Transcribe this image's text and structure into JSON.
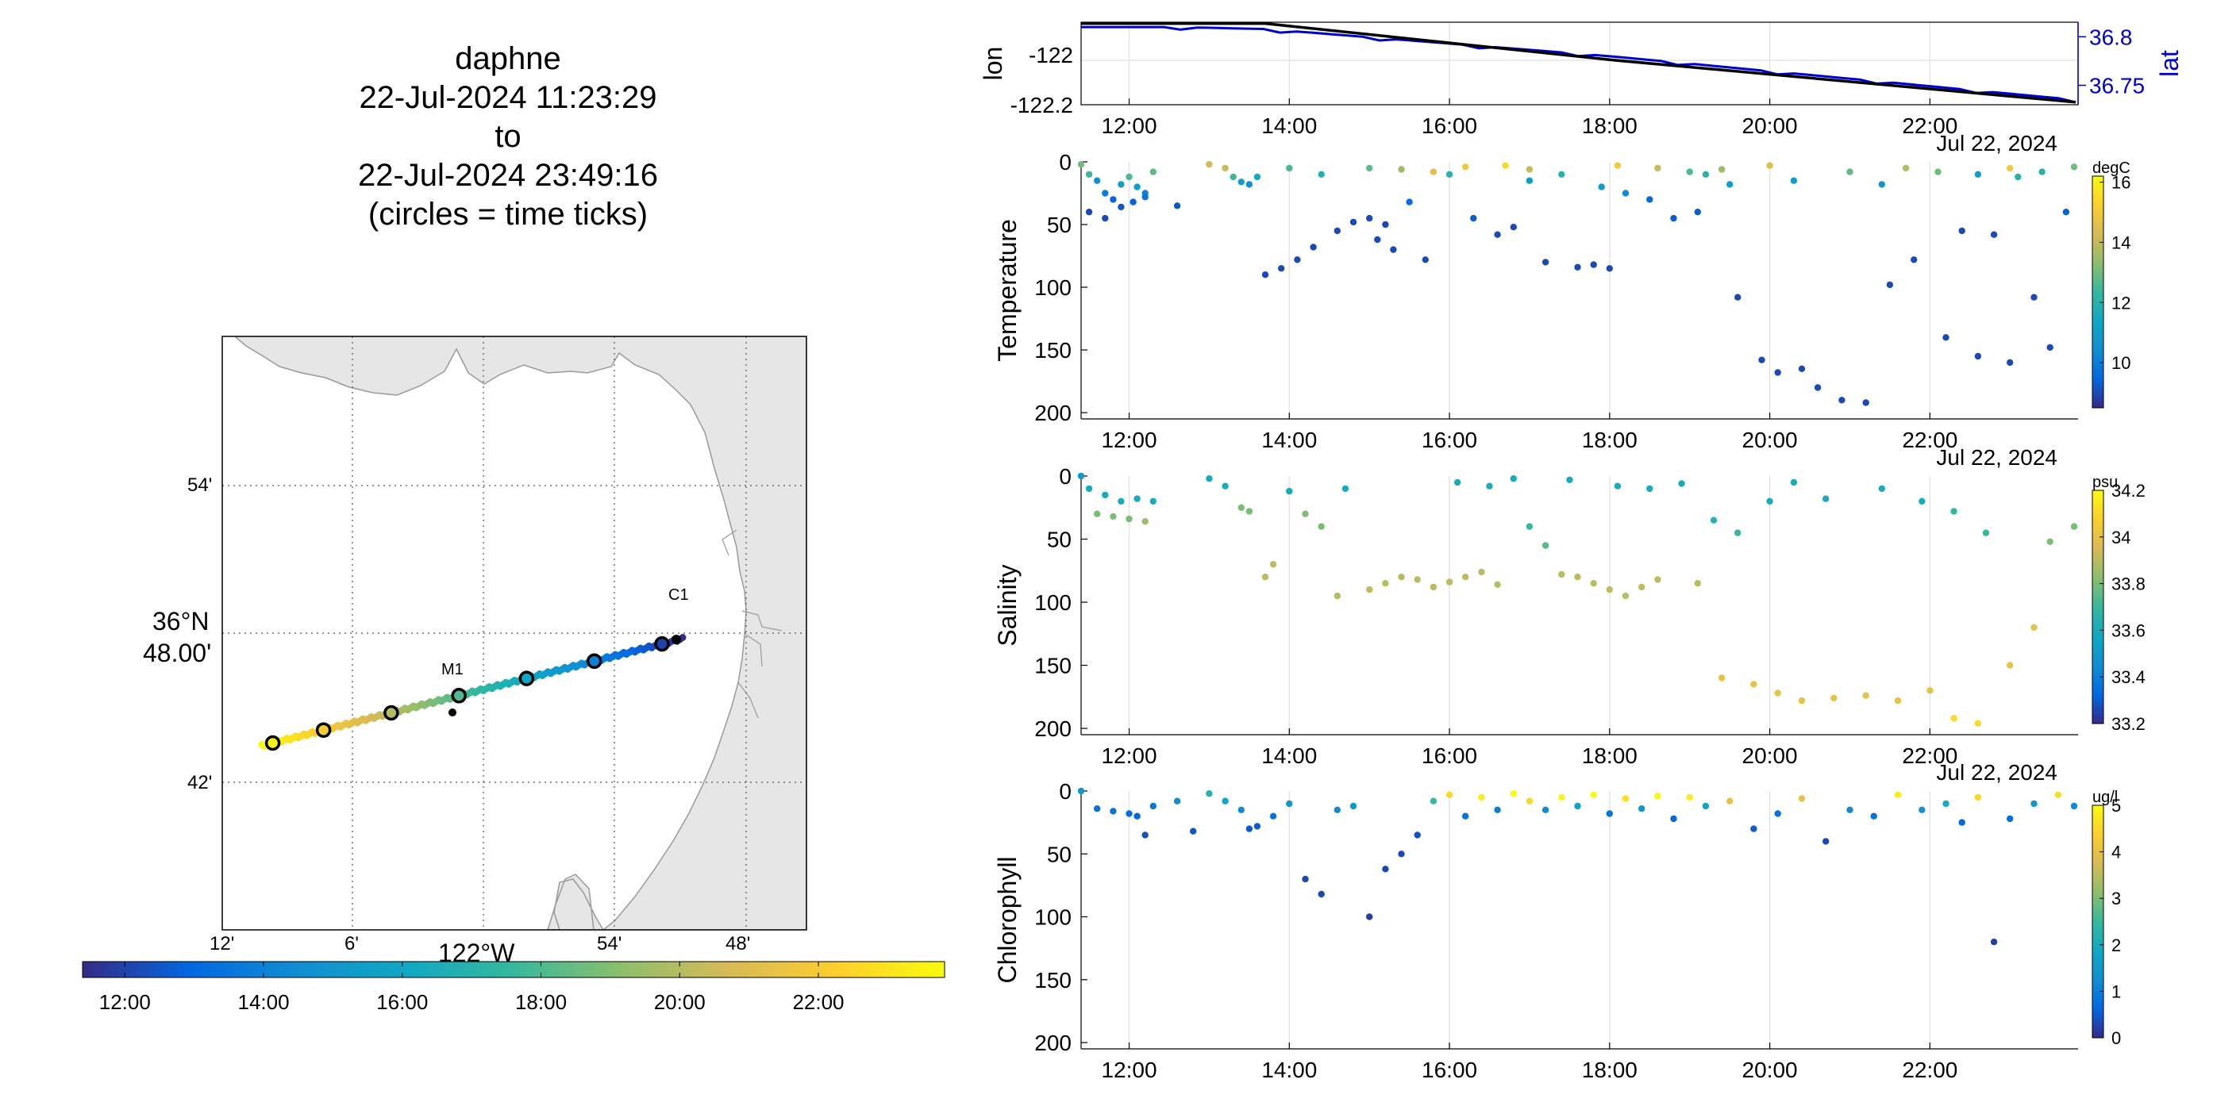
{
  "header": {
    "lines": [
      "daphne",
      "22-Jul-2024 11:23:29",
      "to",
      "22-Jul-2024 23:49:16",
      "(circles = time ticks)"
    ]
  },
  "colors": {
    "lat_axis": "#0000cc",
    "lon_line": "#000000",
    "land": "#e6e6e6",
    "parula": [
      "#352a87",
      "#0268e1",
      "#108ed2",
      "#0fa8c4",
      "#37b89d",
      "#8dbe6c",
      "#d8ba56",
      "#fcce2e",
      "#f9fb0e"
    ]
  },
  "map": {
    "lat_ticks": [
      "54'",
      "42'"
    ],
    "lat_main_label": [
      "36°N",
      "48.00'"
    ],
    "lon_ticks": [
      "12'",
      "6'",
      "54'",
      "48'"
    ],
    "lon_main_label": "122°W",
    "station_labels": [
      "C1",
      "M1"
    ],
    "colorbar_ticks": [
      "12:00",
      "14:00",
      "16:00",
      "18:00",
      "20:00",
      "22:00"
    ],
    "track_time_range": [
      11.39,
      23.82
    ],
    "track_lon_range": [
      -122.21,
      -121.86
    ],
    "track_lat_range": [
      36.734,
      36.808
    ],
    "tick_circle_times": [
      12,
      14,
      16,
      18,
      20,
      22,
      23.5
    ]
  },
  "chart_data": [
    {
      "type": "line",
      "title": "",
      "xlabel": "",
      "ylabel": "lon",
      "y2label": "lat",
      "x_ticks": [
        "12:00",
        "14:00",
        "16:00",
        "18:00",
        "20:00",
        "22:00"
      ],
      "y_ticks": [
        "-122",
        "-122.2"
      ],
      "y2_ticks": [
        "36.8",
        "36.75"
      ],
      "xlim": [
        11.4,
        23.85
      ],
      "ylim": [
        -122.2,
        -121.87
      ],
      "y2lim": [
        36.73,
        36.815
      ],
      "series": [
        {
          "name": "",
          "color": "#000000",
          "x": [
            11.4,
            12.6,
            13.7,
            18.0,
            23.82
          ],
          "y": [
            -121.875,
            -121.875,
            -121.875,
            -122.02,
            -122.19
          ]
        },
        {
          "name": "",
          "color": "#0000cc",
          "x": [
            11.4,
            12.6,
            13.7,
            18.0,
            23.82
          ],
          "y": [
            36.81,
            36.81,
            36.808,
            36.78,
            36.735
          ]
        }
      ]
    },
    {
      "type": "scatter",
      "ylabel": "Temperature",
      "x_ticks": [
        "12:00",
        "14:00",
        "16:00",
        "18:00",
        "20:00",
        "22:00"
      ],
      "y_ticks": [
        "0",
        "50",
        "100",
        "150",
        "200"
      ],
      "date_label": "Jul 22, 2024",
      "colorbar_unit": "degC",
      "colorbar_ticks": [
        "16",
        "14",
        "12",
        "10"
      ],
      "xlim": [
        11.4,
        23.85
      ],
      "ylim": [
        0,
        205
      ],
      "clim": [
        8.5,
        16.2
      ],
      "points": [
        [
          11.4,
          2,
          13
        ],
        [
          11.5,
          10,
          12.4
        ],
        [
          11.6,
          15,
          10.5
        ],
        [
          11.7,
          25,
          10
        ],
        [
          11.8,
          30,
          9.4
        ],
        [
          11.9,
          18,
          11
        ],
        [
          12.0,
          12,
          12.6
        ],
        [
          12.1,
          20,
          11
        ],
        [
          12.2,
          25,
          10.2
        ],
        [
          12.3,
          8,
          12.8
        ],
        [
          11.5,
          40,
          9
        ],
        [
          11.7,
          45,
          9
        ],
        [
          11.9,
          36,
          9.2
        ],
        [
          12.05,
          32,
          9.4
        ],
        [
          12.2,
          28,
          9.8
        ],
        [
          12.6,
          35,
          9.2
        ],
        [
          13.0,
          2,
          14.2
        ],
        [
          13.2,
          5,
          14
        ],
        [
          13.3,
          12,
          12.4
        ],
        [
          13.4,
          16,
          11
        ],
        [
          13.5,
          18,
          10.6
        ],
        [
          13.6,
          12,
          11.5
        ],
        [
          13.7,
          90,
          9
        ],
        [
          13.9,
          85,
          9
        ],
        [
          14.1,
          78,
          9
        ],
        [
          14.3,
          68,
          9
        ],
        [
          14.0,
          5,
          12.5
        ],
        [
          14.4,
          10,
          11.8
        ],
        [
          14.6,
          55,
          9
        ],
        [
          14.8,
          48,
          9
        ],
        [
          15.0,
          45,
          9
        ],
        [
          15.1,
          62,
          9
        ],
        [
          15.2,
          50,
          9
        ],
        [
          15.3,
          70,
          9
        ],
        [
          15.5,
          32,
          9.6
        ],
        [
          15.7,
          78,
          9
        ],
        [
          15.0,
          5,
          12.8
        ],
        [
          15.4,
          6,
          13.5
        ],
        [
          15.8,
          8,
          14.5
        ],
        [
          16.0,
          10,
          12
        ],
        [
          16.2,
          4,
          15
        ],
        [
          16.3,
          45,
          9.3
        ],
        [
          16.6,
          58,
          9
        ],
        [
          16.8,
          52,
          9
        ],
        [
          17.0,
          15,
          11
        ],
        [
          17.2,
          80,
          9
        ],
        [
          16.7,
          3,
          15.5
        ],
        [
          17.0,
          6,
          14
        ],
        [
          17.4,
          10,
          12
        ],
        [
          17.6,
          84,
          9
        ],
        [
          17.8,
          82,
          9
        ],
        [
          18.0,
          85,
          9
        ],
        [
          17.9,
          20,
          11
        ],
        [
          18.2,
          25,
          10.3
        ],
        [
          18.5,
          30,
          9.5
        ],
        [
          18.8,
          45,
          9.3
        ],
        [
          18.1,
          3,
          15
        ],
        [
          18.6,
          5,
          14
        ],
        [
          19.0,
          8,
          12.6
        ],
        [
          19.1,
          40,
          9.3
        ],
        [
          19.2,
          10,
          12
        ],
        [
          19.5,
          18,
          11
        ],
        [
          19.6,
          108,
          9
        ],
        [
          19.9,
          158,
          9
        ],
        [
          20.1,
          168,
          9
        ],
        [
          20.4,
          165,
          9
        ],
        [
          19.4,
          6,
          13.5
        ],
        [
          20.0,
          3,
          14.5
        ],
        [
          20.3,
          15,
          11
        ],
        [
          20.6,
          180,
          9
        ],
        [
          20.9,
          190,
          9
        ],
        [
          21.2,
          192,
          9
        ],
        [
          21.0,
          8,
          12.8
        ],
        [
          21.4,
          18,
          10.8
        ],
        [
          21.5,
          98,
          9
        ],
        [
          21.8,
          78,
          9
        ],
        [
          21.7,
          5,
          13.8
        ],
        [
          22.1,
          8,
          13
        ],
        [
          22.2,
          140,
          9
        ],
        [
          22.4,
          55,
          9
        ],
        [
          22.6,
          155,
          9
        ],
        [
          22.8,
          58,
          9
        ],
        [
          23.0,
          160,
          9
        ],
        [
          23.1,
          12,
          12
        ],
        [
          23.3,
          108,
          9
        ],
        [
          23.5,
          148,
          9
        ],
        [
          22.6,
          10,
          11
        ],
        [
          23.0,
          5,
          15
        ],
        [
          23.4,
          8,
          12
        ],
        [
          23.7,
          40,
          9.4
        ],
        [
          23.8,
          4,
          13
        ]
      ]
    },
    {
      "type": "scatter",
      "ylabel": "Salinity",
      "x_ticks": [
        "12:00",
        "14:00",
        "16:00",
        "18:00",
        "20:00",
        "22:00"
      ],
      "y_ticks": [
        "0",
        "50",
        "100",
        "150",
        "200"
      ],
      "date_label": "Jul 22, 2024",
      "colorbar_unit": "psu",
      "colorbar_ticks": [
        "34.2",
        "34",
        "33.8",
        "33.6",
        "33.4",
        "33.2"
      ],
      "xlim": [
        11.4,
        23.85
      ],
      "ylim": [
        0,
        205
      ],
      "clim": [
        33.2,
        34.2
      ],
      "points": [
        [
          11.4,
          0,
          33.5
        ],
        [
          11.5,
          10,
          33.6
        ],
        [
          11.6,
          30,
          33.8
        ],
        [
          11.7,
          15,
          33.6
        ],
        [
          11.8,
          32,
          33.8
        ],
        [
          11.9,
          20,
          33.6
        ],
        [
          12.0,
          34,
          33.8
        ],
        [
          12.1,
          18,
          33.6
        ],
        [
          12.2,
          36,
          33.85
        ],
        [
          12.3,
          20,
          33.6
        ],
        [
          13.0,
          2,
          33.6
        ],
        [
          13.2,
          8,
          33.6
        ],
        [
          13.4,
          25,
          33.8
        ],
        [
          13.5,
          28,
          33.8
        ],
        [
          13.7,
          80,
          33.9
        ],
        [
          13.8,
          70,
          33.9
        ],
        [
          14.0,
          12,
          33.6
        ],
        [
          14.2,
          30,
          33.8
        ],
        [
          14.4,
          40,
          33.8
        ],
        [
          14.6,
          95,
          33.9
        ],
        [
          14.7,
          10,
          33.6
        ],
        [
          15.0,
          90,
          33.9
        ],
        [
          15.2,
          85,
          33.9
        ],
        [
          15.4,
          80,
          33.9
        ],
        [
          15.6,
          82,
          33.9
        ],
        [
          15.8,
          88,
          33.9
        ],
        [
          16.0,
          84,
          33.9
        ],
        [
          16.2,
          80,
          33.9
        ],
        [
          16.4,
          76,
          33.9
        ],
        [
          16.6,
          86,
          33.9
        ],
        [
          16.8,
          2,
          33.6
        ],
        [
          17.0,
          40,
          33.7
        ],
        [
          17.2,
          55,
          33.75
        ],
        [
          17.4,
          78,
          33.9
        ],
        [
          17.6,
          80,
          33.9
        ],
        [
          17.8,
          85,
          33.9
        ],
        [
          18.0,
          90,
          33.9
        ],
        [
          18.2,
          95,
          33.9
        ],
        [
          18.4,
          88,
          33.9
        ],
        [
          18.6,
          82,
          33.9
        ],
        [
          16.1,
          5,
          33.6
        ],
        [
          16.5,
          8,
          33.6
        ],
        [
          17.5,
          3,
          33.6
        ],
        [
          18.1,
          8,
          33.6
        ],
        [
          18.5,
          10,
          33.6
        ],
        [
          18.9,
          6,
          33.6
        ],
        [
          19.1,
          85,
          33.9
        ],
        [
          19.4,
          160,
          34.0
        ],
        [
          19.8,
          165,
          34.0
        ],
        [
          20.1,
          172,
          34.0
        ],
        [
          19.3,
          35,
          33.65
        ],
        [
          19.6,
          45,
          33.7
        ],
        [
          20.0,
          20,
          33.6
        ],
        [
          20.4,
          178,
          34.0
        ],
        [
          20.8,
          176,
          34.0
        ],
        [
          21.2,
          174,
          34.0
        ],
        [
          21.6,
          178,
          34.0
        ],
        [
          22.0,
          170,
          34.0
        ],
        [
          22.3,
          192,
          34.1
        ],
        [
          22.6,
          196,
          34.1
        ],
        [
          20.3,
          5,
          33.6
        ],
        [
          20.7,
          18,
          33.6
        ],
        [
          21.4,
          10,
          33.6
        ],
        [
          21.9,
          20,
          33.6
        ],
        [
          22.3,
          28,
          33.7
        ],
        [
          22.7,
          45,
          33.7
        ],
        [
          23.0,
          150,
          34.0
        ],
        [
          23.3,
          120,
          34.0
        ],
        [
          23.5,
          52,
          33.8
        ],
        [
          23.8,
          40,
          33.8
        ]
      ]
    },
    {
      "type": "scatter",
      "ylabel": "Chlorophyll",
      "x_ticks": [
        "12:00",
        "14:00",
        "16:00",
        "18:00",
        "20:00",
        "22:00"
      ],
      "y_ticks": [
        "0",
        "50",
        "100",
        "150",
        "200"
      ],
      "date_label": "Jul 22, 2024",
      "colorbar_unit": "ug/l",
      "colorbar_ticks": [
        "5",
        "4",
        "3",
        "2",
        "1",
        "0"
      ],
      "xlim": [
        11.4,
        23.85
      ],
      "ylim": [
        0,
        205
      ],
      "clim": [
        0,
        5
      ],
      "points": [
        [
          11.4,
          0,
          1.5
        ],
        [
          11.6,
          14,
          0.8
        ],
        [
          11.8,
          16,
          0.8
        ],
        [
          12.0,
          18,
          0.7
        ],
        [
          12.1,
          20,
          0.6
        ],
        [
          12.2,
          35,
          0.4
        ],
        [
          12.3,
          12,
          0.9
        ],
        [
          12.6,
          8,
          1.2
        ],
        [
          12.8,
          32,
          0.4
        ],
        [
          13.0,
          2,
          2.2
        ],
        [
          13.2,
          8,
          1.8
        ],
        [
          13.4,
          15,
          1.2
        ],
        [
          13.5,
          30,
          0.5
        ],
        [
          13.6,
          28,
          0.5
        ],
        [
          13.8,
          20,
          0.8
        ],
        [
          14.0,
          10,
          1.5
        ],
        [
          14.2,
          70,
          0.3
        ],
        [
          14.4,
          82,
          0.3
        ],
        [
          14.6,
          15,
          1.2
        ],
        [
          14.8,
          12,
          1.5
        ],
        [
          15.0,
          100,
          0.2
        ],
        [
          15.2,
          62,
          0.3
        ],
        [
          15.4,
          50,
          0.3
        ],
        [
          15.6,
          35,
          0.4
        ],
        [
          15.8,
          8,
          2.5
        ],
        [
          16.0,
          3,
          4.5
        ],
        [
          16.2,
          20,
          0.8
        ],
        [
          16.4,
          5,
          4.8
        ],
        [
          16.6,
          15,
          1
        ],
        [
          16.8,
          2,
          5
        ],
        [
          17.0,
          8,
          4.5
        ],
        [
          17.2,
          15,
          1.2
        ],
        [
          17.4,
          5,
          4.9
        ],
        [
          17.6,
          12,
          1.8
        ],
        [
          17.8,
          3,
          5
        ],
        [
          18.0,
          18,
          0.8
        ],
        [
          18.2,
          6,
          4.6
        ],
        [
          18.4,
          14,
          1.5
        ],
        [
          18.6,
          4,
          5
        ],
        [
          18.8,
          22,
          0.6
        ],
        [
          19.0,
          5,
          4.8
        ],
        [
          19.2,
          12,
          1.8
        ],
        [
          19.5,
          8,
          4
        ],
        [
          19.8,
          30,
          0.5
        ],
        [
          20.1,
          18,
          0.8
        ],
        [
          20.4,
          6,
          4
        ],
        [
          20.7,
          40,
          0.3
        ],
        [
          21.0,
          15,
          1.2
        ],
        [
          21.3,
          20,
          0.8
        ],
        [
          21.6,
          3,
          4.8
        ],
        [
          21.9,
          15,
          1.4
        ],
        [
          22.2,
          10,
          2
        ],
        [
          22.4,
          25,
          0.6
        ],
        [
          22.6,
          5,
          4.5
        ],
        [
          22.8,
          120,
          0.2
        ],
        [
          23.0,
          22,
          0.7
        ],
        [
          23.3,
          10,
          1.5
        ],
        [
          23.6,
          3,
          4.6
        ],
        [
          23.8,
          12,
          1.2
        ]
      ]
    }
  ]
}
